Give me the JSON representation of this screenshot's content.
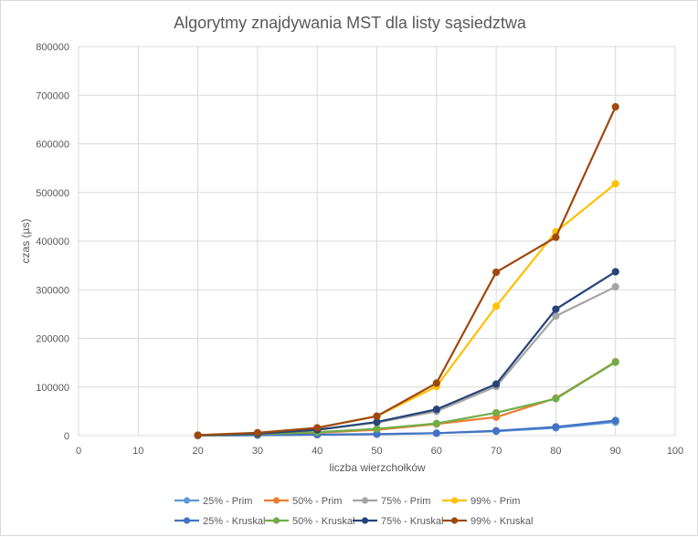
{
  "chart_data": {
    "type": "line",
    "title": "Algorytmy znajdywania MST dla listy sąsiedztwa",
    "xlabel": "liczba wierzchołków",
    "ylabel": "czas (µs)",
    "xlim": [
      0,
      100
    ],
    "ylim": [
      0,
      800000
    ],
    "x_ticks": [
      0,
      10,
      20,
      30,
      40,
      50,
      60,
      70,
      80,
      90,
      100
    ],
    "y_ticks": [
      0,
      100000,
      200000,
      300000,
      400000,
      500000,
      600000,
      700000,
      800000
    ],
    "grid": "vertical and horizontal major gridlines",
    "legend_position": "bottom",
    "x": [
      20,
      30,
      40,
      50,
      60,
      70,
      80,
      90
    ],
    "series": [
      {
        "name": "25% - Prim",
        "color": "#5b9bd5",
        "values": [
          300,
          1000,
          2000,
          3000,
          5000,
          9000,
          16000,
          28000
        ]
      },
      {
        "name": "50% - Prim",
        "color": "#ed7d31",
        "values": [
          500,
          2000,
          6000,
          12000,
          24000,
          38000,
          77000,
          152000
        ]
      },
      {
        "name": "75% - Prim",
        "color": "#a5a5a5",
        "values": [
          800,
          4000,
          12000,
          27000,
          50000,
          101000,
          246000,
          306000
        ]
      },
      {
        "name": "99% - Prim",
        "color": "#ffc000",
        "values": [
          1000,
          5000,
          16000,
          40000,
          101000,
          266000,
          419000,
          518000
        ]
      },
      {
        "name": "25% - Kruskal",
        "color": "#4472c4",
        "values": [
          300,
          1000,
          2000,
          3000,
          5000,
          10000,
          18000,
          31000
        ]
      },
      {
        "name": "50% - Kruskal",
        "color": "#70ad47",
        "values": [
          500,
          3000,
          7000,
          14000,
          25000,
          47000,
          76000,
          151000
        ]
      },
      {
        "name": "75% - Kruskal",
        "color": "#264478",
        "values": [
          800,
          4000,
          12000,
          28000,
          54000,
          106000,
          260000,
          337000
        ]
      },
      {
        "name": "99% - Kruskal",
        "color": "#9e480e",
        "values": [
          1000,
          6000,
          16000,
          40000,
          108000,
          336000,
          408000,
          676000
        ]
      }
    ]
  }
}
